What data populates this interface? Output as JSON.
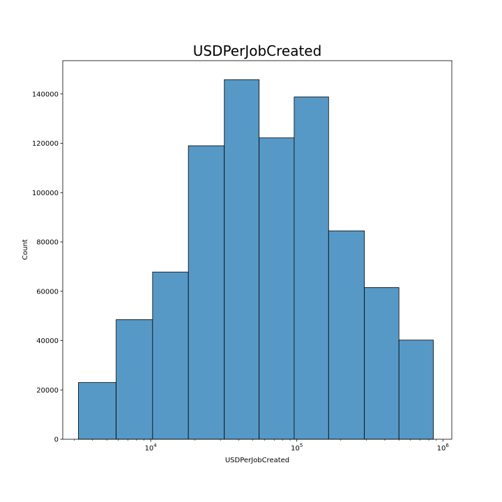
{
  "chart_data": {
    "type": "bar",
    "subtype": "histogram",
    "title": "USDPerJobCreated",
    "xlabel": "USDPerJobCreated",
    "ylabel": "Count",
    "x_scale": "log",
    "xlim": [
      2500,
      1150000
    ],
    "ylim": [
      0,
      153500
    ],
    "bar_color": "#5799c6",
    "edge_color": "#000000",
    "grid": false,
    "bins": [
      {
        "x0": 3200,
        "x1": 5800,
        "count": 23000
      },
      {
        "x0": 5800,
        "x1": 10300,
        "count": 48500
      },
      {
        "x0": 10300,
        "x1": 18100,
        "count": 67800
      },
      {
        "x0": 18100,
        "x1": 31900,
        "count": 119000
      },
      {
        "x0": 31900,
        "x1": 55200,
        "count": 145800
      },
      {
        "x0": 55200,
        "x1": 95900,
        "count": 122200
      },
      {
        "x0": 95900,
        "x1": 165000,
        "count": 138800
      },
      {
        "x0": 165000,
        "x1": 290000,
        "count": 84500
      },
      {
        "x0": 290000,
        "x1": 500000,
        "count": 61500
      },
      {
        "x0": 500000,
        "x1": 860000,
        "count": 40200
      }
    ],
    "y_ticks": [
      {
        "value": 0,
        "label": "0"
      },
      {
        "value": 20000,
        "label": "20000"
      },
      {
        "value": 40000,
        "label": "40000"
      },
      {
        "value": 60000,
        "label": "60000"
      },
      {
        "value": 80000,
        "label": "80000"
      },
      {
        "value": 100000,
        "label": "100000"
      },
      {
        "value": 120000,
        "label": "120000"
      },
      {
        "value": 140000,
        "label": "140000"
      }
    ],
    "x_major_ticks": [
      {
        "value": 10000,
        "base": "10",
        "exp": "4"
      },
      {
        "value": 100000,
        "base": "10",
        "exp": "5"
      },
      {
        "value": 1000000,
        "base": "10",
        "exp": "6"
      }
    ]
  }
}
